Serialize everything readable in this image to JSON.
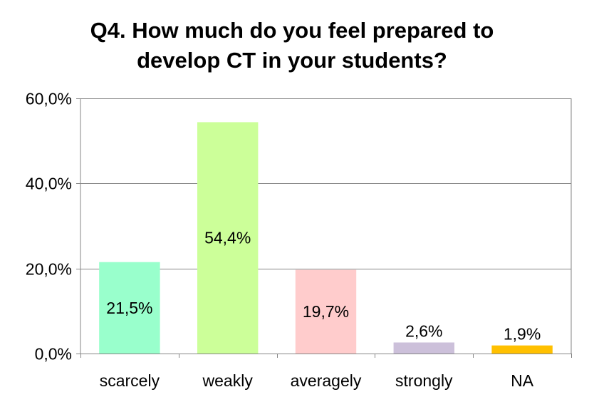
{
  "chart_data": {
    "type": "bar",
    "title": "Q4. How much do you feel prepared to develop CT in your students?",
    "title_lines": [
      "Q4. How much do you feel prepared to",
      "develop CT in your students?"
    ],
    "xlabel": "",
    "ylabel": "",
    "categories": [
      "scarcely",
      "weakly",
      "averagely",
      "strongly",
      "NA"
    ],
    "values": [
      21.5,
      54.4,
      19.7,
      2.6,
      1.9
    ],
    "data_labels": [
      "21,5%",
      "54,4%",
      "19,7%",
      "2,6%",
      "1,9%"
    ],
    "colors": [
      "#99ffcc",
      "#ccff99",
      "#ffcccc",
      "#ccc0da",
      "#ffc000"
    ],
    "ylim": [
      0,
      60
    ],
    "y_ticks": [
      0,
      20,
      40,
      60
    ],
    "y_tick_labels": [
      "0,0%",
      "20,0%",
      "40,0%",
      "60,0%"
    ],
    "grid": true,
    "legend": "none",
    "gridline_color": "#868686"
  }
}
